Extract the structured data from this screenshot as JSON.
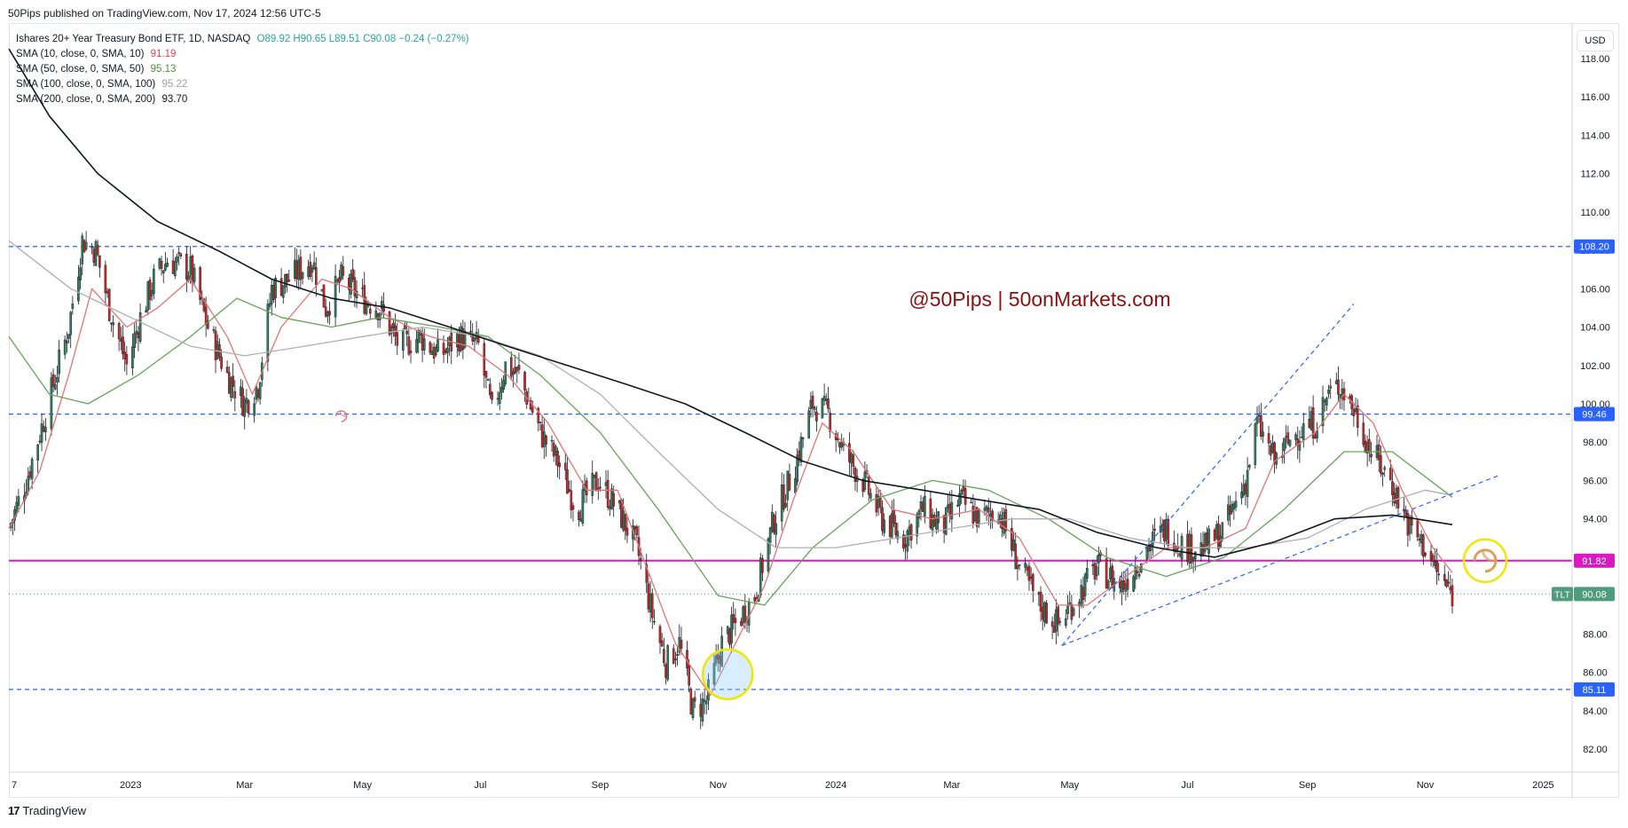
{
  "header": {
    "published": "50Pips published on TradingView.com, Nov 17, 2024 12:56 UTC-5"
  },
  "legend": {
    "symbol": "Ishares 20+ Year Treasury Bond ETF, 1D, NASDAQ",
    "ohlc": "O89.92 H90.65 L89.51 C90.08 −0.24 (−0.27%)",
    "indicators": [
      {
        "label": "SMA (10, close, 0, SMA, 10)",
        "value": "91.19",
        "color": "#e57373"
      },
      {
        "label": "SMA (50, close, 0, SMA, 50)",
        "value": "95.13",
        "color": "#66a35a"
      },
      {
        "label": "SMA (100, close, 0, SMA, 100)",
        "value": "95.22",
        "color": "#b0b0b0"
      },
      {
        "label": "SMA (200, close, 0, SMA, 200)",
        "value": "93.70",
        "color": "#131722"
      }
    ]
  },
  "currency_button": "USD",
  "watermark": "@50Pips | 50onMarkets.com",
  "footer": {
    "brand": "TradingView",
    "logo_glyph": "17"
  },
  "colors": {
    "up": "#26a69a",
    "down": "#ef5350",
    "magenta": "#d81bbf",
    "blue_dash": "#2962ff",
    "sma10": "#e57373",
    "sma50": "#66a35a",
    "sma100": "#b0b0b0",
    "sma200": "#131722"
  },
  "chart_data": {
    "type": "line",
    "series_kind": "candlestick",
    "y_axis": {
      "ticks": [
        "82.00",
        "84.00",
        "86.00",
        "88.00",
        "90.00",
        "92.00",
        "94.00",
        "96.00",
        "98.00",
        "100.00",
        "102.00",
        "104.00",
        "106.00",
        "108.00",
        "110.00",
        "112.00",
        "114.00",
        "116.00",
        "118.00"
      ],
      "range": [
        80.8,
        119.8
      ]
    },
    "x_axis": {
      "ticks": [
        {
          "label": "7",
          "date": "2022-11-01"
        },
        {
          "label": "2023",
          "date": "2023-01-01"
        },
        {
          "label": "Mar",
          "date": "2023-03-01"
        },
        {
          "label": "May",
          "date": "2023-05-01"
        },
        {
          "label": "Jul",
          "date": "2023-07-01"
        },
        {
          "label": "Sep",
          "date": "2023-09-01"
        },
        {
          "label": "Nov",
          "date": "2023-11-01"
        },
        {
          "label": "2024",
          "date": "2024-01-01"
        },
        {
          "label": "Mar",
          "date": "2024-03-01"
        },
        {
          "label": "May",
          "date": "2024-05-01"
        },
        {
          "label": "Jul",
          "date": "2024-07-01"
        },
        {
          "label": "Sep",
          "date": "2024-09-01"
        },
        {
          "label": "Nov",
          "date": "2024-11-01"
        },
        {
          "label": "2025",
          "date": "2025-01-01"
        }
      ],
      "range": [
        "2022-10-30",
        "2025-01-16"
      ]
    },
    "price_line": {
      "symbol": "TLT",
      "value": 90.08,
      "label": "90.08"
    },
    "horizontal_levels": [
      {
        "value": 108.2,
        "label": "108.20",
        "style": "dashed"
      },
      {
        "value": 99.46,
        "label": "99.46",
        "style": "dashed"
      },
      {
        "value": 91.82,
        "label": "91.82",
        "style": "solid"
      },
      {
        "value": 85.11,
        "label": "85.11",
        "style": "dashed"
      }
    ],
    "close_path": [
      [
        "2022-10-30",
        93.5
      ],
      [
        "2022-11-08",
        96.0
      ],
      [
        "2022-11-18",
        99.5
      ],
      [
        "2022-11-30",
        104.0
      ],
      [
        "2022-12-07",
        108.5
      ],
      [
        "2022-12-14",
        108.0
      ],
      [
        "2022-12-21",
        105.0
      ],
      [
        "2022-12-30",
        102.0
      ],
      [
        "2023-01-06",
        104.5
      ],
      [
        "2023-01-13",
        106.5
      ],
      [
        "2023-01-20",
        107.5
      ],
      [
        "2023-02-01",
        107.0
      ],
      [
        "2023-02-10",
        104.0
      ],
      [
        "2023-02-20",
        101.5
      ],
      [
        "2023-03-01",
        100.0
      ],
      [
        "2023-03-08",
        101.0
      ],
      [
        "2023-03-15",
        106.0
      ],
      [
        "2023-03-24",
        106.5
      ],
      [
        "2023-04-05",
        107.5
      ],
      [
        "2023-04-12",
        105.0
      ],
      [
        "2023-04-20",
        106.5
      ],
      [
        "2023-05-01",
        105.5
      ],
      [
        "2023-05-10",
        105.0
      ],
      [
        "2023-05-20",
        103.0
      ],
      [
        "2023-05-31",
        103.5
      ],
      [
        "2023-06-10",
        102.5
      ],
      [
        "2023-06-20",
        103.5
      ],
      [
        "2023-06-30",
        103.0
      ],
      [
        "2023-07-07",
        99.5
      ],
      [
        "2023-07-14",
        102.0
      ],
      [
        "2023-07-21",
        101.5
      ],
      [
        "2023-08-01",
        98.5
      ],
      [
        "2023-08-10",
        97.0
      ],
      [
        "2023-08-20",
        94.5
      ],
      [
        "2023-08-31",
        96.0
      ],
      [
        "2023-09-10",
        94.5
      ],
      [
        "2023-09-20",
        92.5
      ],
      [
        "2023-09-28",
        89.0
      ],
      [
        "2023-10-05",
        86.5
      ],
      [
        "2023-10-12",
        87.5
      ],
      [
        "2023-10-19",
        84.0
      ],
      [
        "2023-10-26",
        84.5
      ],
      [
        "2023-11-03",
        87.5
      ],
      [
        "2023-11-10",
        88.5
      ],
      [
        "2023-11-20",
        90.0
      ],
      [
        "2023-11-30",
        94.0
      ],
      [
        "2023-12-10",
        96.5
      ],
      [
        "2023-12-20",
        100.0
      ],
      [
        "2023-12-28",
        99.5
      ],
      [
        "2024-01-05",
        97.5
      ],
      [
        "2024-01-15",
        96.0
      ],
      [
        "2024-01-25",
        94.0
      ],
      [
        "2024-02-05",
        93.0
      ],
      [
        "2024-02-15",
        94.5
      ],
      [
        "2024-02-25",
        93.5
      ],
      [
        "2024-03-05",
        95.0
      ],
      [
        "2024-03-15",
        94.0
      ],
      [
        "2024-03-25",
        94.5
      ],
      [
        "2024-04-05",
        91.5
      ],
      [
        "2024-04-15",
        89.5
      ],
      [
        "2024-04-25",
        88.5
      ],
      [
        "2024-05-05",
        90.0
      ],
      [
        "2024-05-15",
        91.5
      ],
      [
        "2024-05-28",
        90.5
      ],
      [
        "2024-06-10",
        92.5
      ],
      [
        "2024-06-20",
        93.5
      ],
      [
        "2024-06-30",
        92.5
      ],
      [
        "2024-07-10",
        92.5
      ],
      [
        "2024-07-20",
        93.5
      ],
      [
        "2024-07-31",
        96.0
      ],
      [
        "2024-08-06",
        99.0
      ],
      [
        "2024-08-15",
        97.0
      ],
      [
        "2024-08-26",
        98.5
      ],
      [
        "2024-09-05",
        99.0
      ],
      [
        "2024-09-12",
        100.5
      ],
      [
        "2024-09-18",
        101.0
      ],
      [
        "2024-09-26",
        99.5
      ],
      [
        "2024-10-04",
        97.5
      ],
      [
        "2024-10-14",
        96.0
      ],
      [
        "2024-10-24",
        93.5
      ],
      [
        "2024-11-01",
        92.5
      ],
      [
        "2024-11-08",
        91.0
      ],
      [
        "2024-11-15",
        90.08
      ]
    ],
    "sma_series": [
      {
        "label": "SMA 10",
        "color": "#e57373",
        "points": [
          [
            "2022-10-30",
            93.5
          ],
          [
            "2022-11-15",
            96.5
          ],
          [
            "2022-11-30",
            101.5
          ],
          [
            "2022-12-12",
            106.0
          ],
          [
            "2022-12-30",
            104.0
          ],
          [
            "2023-01-15",
            105.0
          ],
          [
            "2023-02-01",
            106.5
          ],
          [
            "2023-02-20",
            103.5
          ],
          [
            "2023-03-05",
            100.5
          ],
          [
            "2023-03-20",
            104.0
          ],
          [
            "2023-04-10",
            106.5
          ],
          [
            "2023-04-25",
            106.0
          ],
          [
            "2023-05-15",
            104.5
          ],
          [
            "2023-06-05",
            103.5
          ],
          [
            "2023-06-25",
            103.0
          ],
          [
            "2023-07-15",
            101.5
          ],
          [
            "2023-08-05",
            99.0
          ],
          [
            "2023-08-25",
            95.5
          ],
          [
            "2023-09-10",
            95.5
          ],
          [
            "2023-09-25",
            91.5
          ],
          [
            "2023-10-10",
            87.5
          ],
          [
            "2023-10-28",
            84.8
          ],
          [
            "2023-11-10",
            87.5
          ],
          [
            "2023-11-25",
            90.5
          ],
          [
            "2023-12-10",
            95.0
          ],
          [
            "2023-12-25",
            99.0
          ],
          [
            "2024-01-10",
            97.5
          ],
          [
            "2024-01-30",
            94.5
          ],
          [
            "2024-02-20",
            94.0
          ],
          [
            "2024-03-15",
            94.5
          ],
          [
            "2024-04-05",
            93.0
          ],
          [
            "2024-04-25",
            89.5
          ],
          [
            "2024-05-10",
            89.5
          ],
          [
            "2024-05-30",
            91.0
          ],
          [
            "2024-06-20",
            92.5
          ],
          [
            "2024-07-10",
            92.5
          ],
          [
            "2024-07-31",
            93.5
          ],
          [
            "2024-08-15",
            97.0
          ],
          [
            "2024-09-05",
            98.5
          ],
          [
            "2024-09-20",
            100.5
          ],
          [
            "2024-10-05",
            99.0
          ],
          [
            "2024-10-20",
            95.5
          ],
          [
            "2024-11-05",
            92.5
          ],
          [
            "2024-11-15",
            91.19
          ]
        ]
      },
      {
        "label": "SMA 50",
        "color": "#66a35a",
        "points": [
          [
            "2022-10-30",
            103.5
          ],
          [
            "2022-11-20",
            100.5
          ],
          [
            "2022-12-10",
            100.0
          ],
          [
            "2023-01-05",
            101.5
          ],
          [
            "2023-02-01",
            103.5
          ],
          [
            "2023-02-25",
            105.5
          ],
          [
            "2023-03-20",
            104.5
          ],
          [
            "2023-04-15",
            104.0
          ],
          [
            "2023-05-10",
            104.5
          ],
          [
            "2023-06-10",
            104.0
          ],
          [
            "2023-07-05",
            103.5
          ],
          [
            "2023-08-01",
            101.5
          ],
          [
            "2023-09-01",
            98.5
          ],
          [
            "2023-10-01",
            94.5
          ],
          [
            "2023-11-01",
            90.0
          ],
          [
            "2023-11-25",
            89.5
          ],
          [
            "2023-12-20",
            92.5
          ],
          [
            "2024-01-20",
            95.0
          ],
          [
            "2024-02-20",
            96.0
          ],
          [
            "2024-03-20",
            95.5
          ],
          [
            "2024-04-20",
            94.0
          ],
          [
            "2024-05-20",
            92.0
          ],
          [
            "2024-06-20",
            91.0
          ],
          [
            "2024-07-20",
            92.0
          ],
          [
            "2024-08-20",
            94.5
          ],
          [
            "2024-09-20",
            97.5
          ],
          [
            "2024-10-15",
            97.5
          ],
          [
            "2024-11-15",
            95.13
          ]
        ]
      },
      {
        "label": "SMA 100",
        "color": "#b0b0b0",
        "points": [
          [
            "2022-10-30",
            108.5
          ],
          [
            "2022-12-01",
            106.0
          ],
          [
            "2023-01-01",
            104.5
          ],
          [
            "2023-02-01",
            103.0
          ],
          [
            "2023-03-01",
            102.5
          ],
          [
            "2023-04-01",
            103.0
          ],
          [
            "2023-05-01",
            103.5
          ],
          [
            "2023-06-01",
            104.0
          ],
          [
            "2023-07-01",
            103.5
          ],
          [
            "2023-08-01",
            102.5
          ],
          [
            "2023-09-01",
            100.5
          ],
          [
            "2023-10-01",
            97.5
          ],
          [
            "2023-11-01",
            94.5
          ],
          [
            "2023-12-01",
            92.5
          ],
          [
            "2024-01-01",
            92.5
          ],
          [
            "2024-02-01",
            93.0
          ],
          [
            "2024-03-01",
            93.5
          ],
          [
            "2024-04-01",
            94.0
          ],
          [
            "2024-05-01",
            94.0
          ],
          [
            "2024-06-01",
            93.0
          ],
          [
            "2024-07-01",
            92.5
          ],
          [
            "2024-08-01",
            92.5
          ],
          [
            "2024-09-01",
            93.0
          ],
          [
            "2024-10-01",
            94.5
          ],
          [
            "2024-11-01",
            95.5
          ],
          [
            "2024-11-15",
            95.22
          ]
        ]
      },
      {
        "label": "SMA 200",
        "color": "#131722",
        "points": [
          [
            "2022-10-30",
            118.5
          ],
          [
            "2022-11-20",
            115.0
          ],
          [
            "2022-12-15",
            112.0
          ],
          [
            "2023-01-15",
            109.5
          ],
          [
            "2023-02-15",
            108.0
          ],
          [
            "2023-03-15",
            106.5
          ],
          [
            "2023-04-15",
            105.5
          ],
          [
            "2023-05-15",
            105.0
          ],
          [
            "2023-06-15",
            104.0
          ],
          [
            "2023-07-15",
            103.0
          ],
          [
            "2023-08-15",
            102.0
          ],
          [
            "2023-09-15",
            101.0
          ],
          [
            "2023-10-15",
            100.0
          ],
          [
            "2023-11-15",
            98.5
          ],
          [
            "2023-12-15",
            97.0
          ],
          [
            "2024-01-15",
            96.0
          ],
          [
            "2024-02-15",
            95.5
          ],
          [
            "2024-03-15",
            95.0
          ],
          [
            "2024-04-15",
            94.5
          ],
          [
            "2024-05-15",
            93.3
          ],
          [
            "2024-06-15",
            92.5
          ],
          [
            "2024-07-15",
            92.0
          ],
          [
            "2024-08-15",
            92.8
          ],
          [
            "2024-09-15",
            94.0
          ],
          [
            "2024-10-15",
            94.2
          ],
          [
            "2024-11-15",
            93.7
          ]
        ]
      }
    ],
    "trendlines": [
      {
        "from": [
          "2024-04-27",
          87.4
        ],
        "to": [
          "2024-09-25",
          105.2
        ],
        "style": "dashed"
      },
      {
        "from": [
          "2024-04-27",
          87.4
        ],
        "to": [
          "2024-12-10",
          96.3
        ],
        "style": "dashed"
      }
    ],
    "highlight_circles": [
      {
        "date": "2023-11-06",
        "value": 85.9
      },
      {
        "date": "2024-12-02",
        "value": 91.82
      }
    ],
    "replay_markers": [
      {
        "date": "2023-04-20",
        "value": 99.35
      },
      {
        "date": "2024-12-02",
        "value": 91.82
      }
    ]
  }
}
